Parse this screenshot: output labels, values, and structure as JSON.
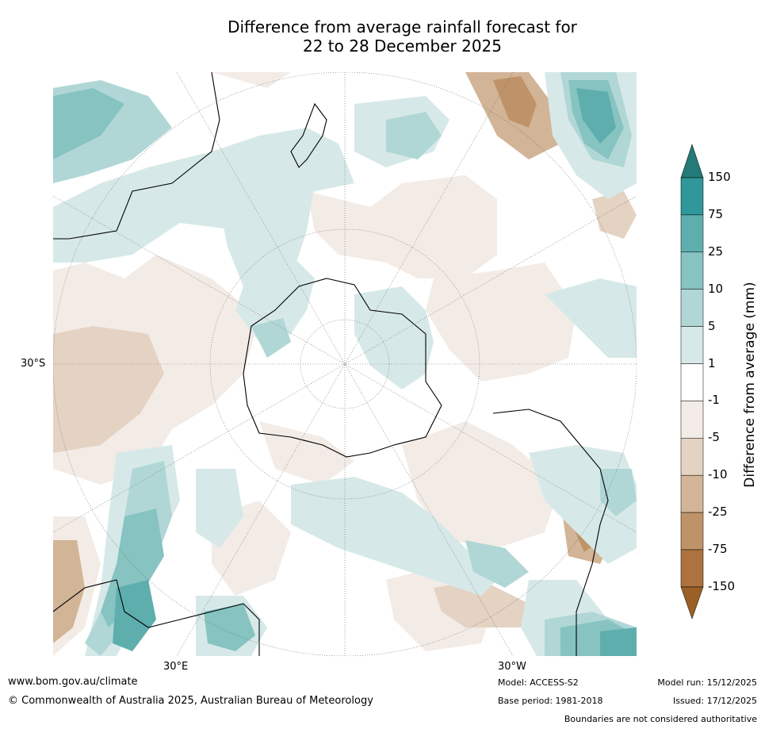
{
  "title_line1": "Difference from average rainfall forecast for",
  "title_line2": "22 to 28 December 2025",
  "map": {
    "lat_label": "30°S",
    "lon_label_left": "30°E",
    "lon_label_right": "30°W"
  },
  "legend": {
    "title": "Difference from average (mm)",
    "ticks": [
      "150",
      "75",
      "25",
      "10",
      "5",
      "1",
      "-1",
      "-5",
      "-10",
      "-25",
      "-75",
      "-150"
    ],
    "colors": {
      "above_max": "#237a78",
      "b75_150": "#30979a",
      "b25_75": "#5eaeae",
      "b10_25": "#86c3c1",
      "b5_10": "#b0d7d6",
      "b1_5": "#d6e9e8",
      "bneutral": "#ffffff",
      "bm1_m5": "#f3ebe6",
      "bm5_m10": "#e4d2c3",
      "bm10_m25": "#d2b497",
      "bm25_m75": "#bf9367",
      "bm75_m150": "#ad723d",
      "below_min": "#9b6025"
    }
  },
  "footer": {
    "url": "www.bom.gov.au/climate",
    "copyright": "© Commonwealth of Australia 2025, Australian Bureau of Meteorology",
    "model": "Model: ACCESS-S2",
    "base_period": "Base period: 1981-2018",
    "model_run": "Model run: 15/12/2025",
    "issued": "Issued: 17/12/2025",
    "disclaimer": "Boundaries are not considered authoritative"
  }
}
